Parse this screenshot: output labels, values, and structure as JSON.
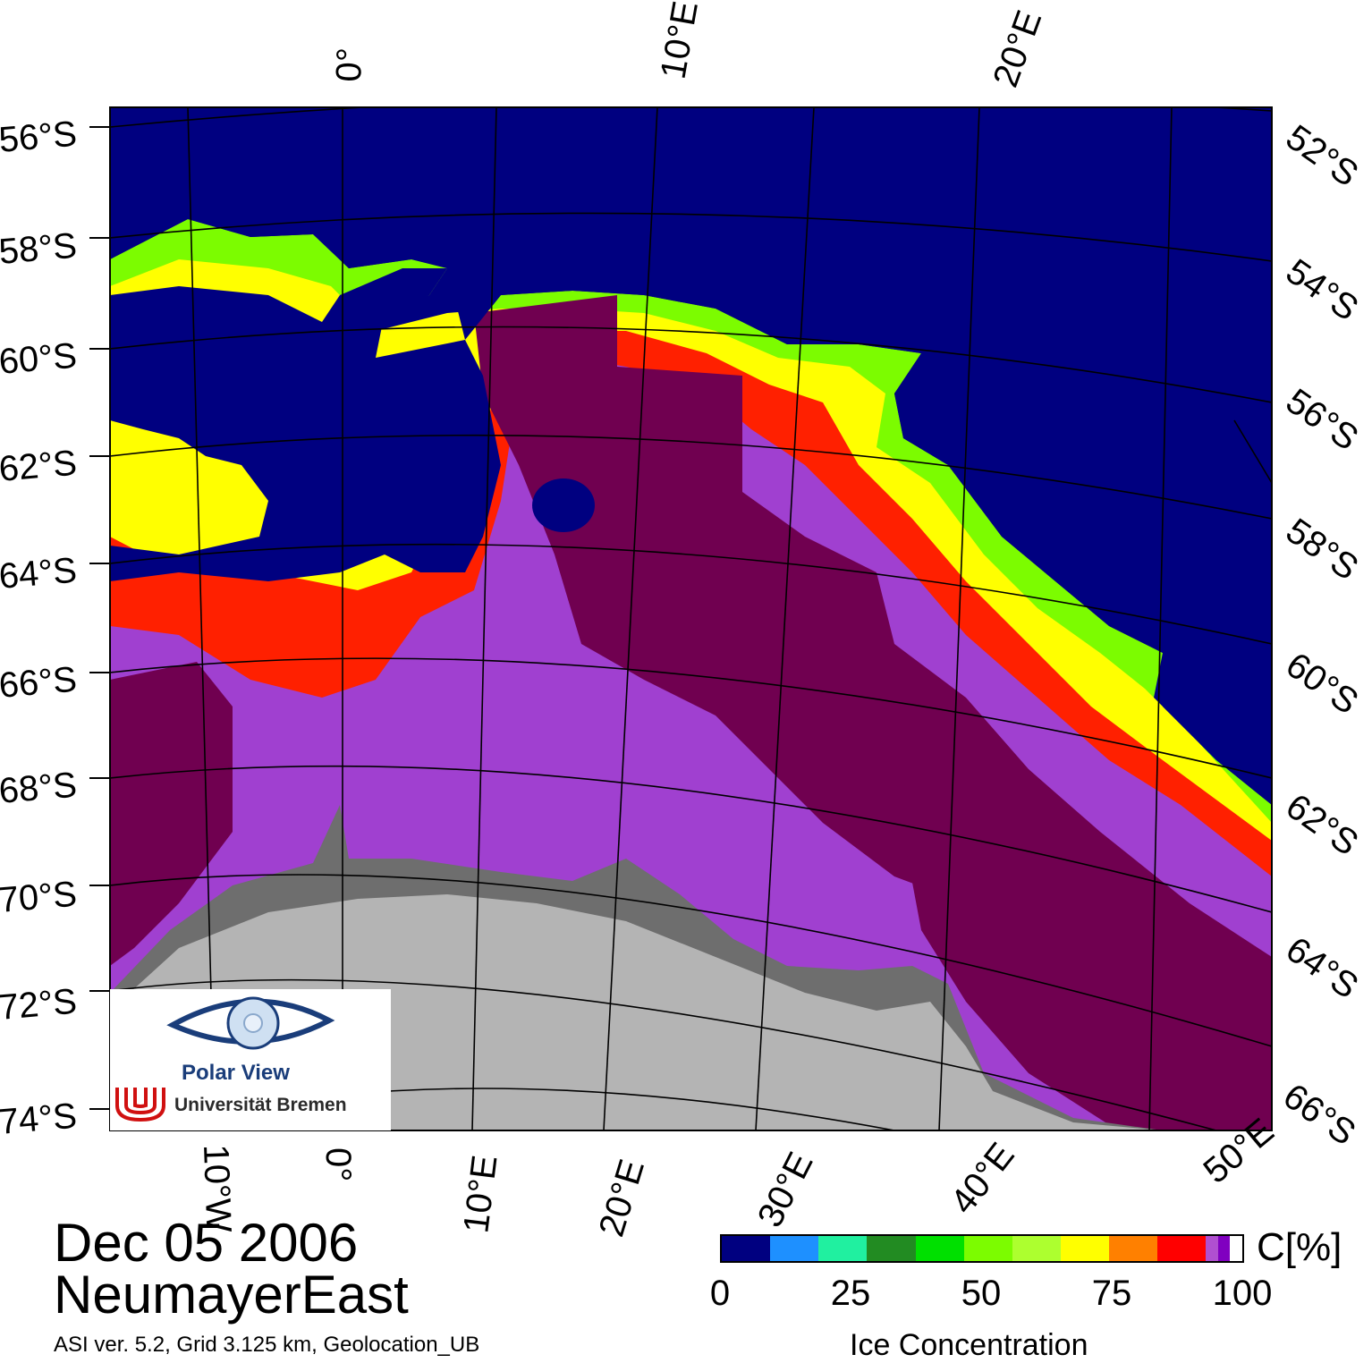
{
  "date": "Dec 05 2006",
  "region": "NeumayerEast",
  "credits": "ASI ver. 5.2,  Grid 3.125 km, Geolocation_UB",
  "lat_labels_left": [
    "56°S",
    "58°S",
    "60°S",
    "62°S",
    "64°S",
    "66°S",
    "68°S",
    "70°S",
    "72°S",
    "74°S"
  ],
  "lat_labels_right": [
    "52°S",
    "54°S",
    "56°S",
    "58°S",
    "60°S",
    "62°S",
    "64°S",
    "66°S"
  ],
  "lon_labels_top": [
    "0°",
    "10°E",
    "20°E"
  ],
  "lon_labels_bottom": [
    "10°W",
    "0°",
    "10°E",
    "20°E",
    "30°E",
    "40°E",
    "50°E"
  ],
  "colorbar": {
    "unit": "C[%]",
    "title": "Ice Concentration",
    "ticks": [
      "0",
      "25",
      "50",
      "75",
      "100"
    ],
    "colors": [
      "#000080",
      "#1e90ff",
      "#20f0a0",
      "#228b22",
      "#00e000",
      "#7cfc00",
      "#adff2f",
      "#ffff00",
      "#ff8000",
      "#ff0000",
      "#b050d0",
      "#8000c0",
      "#ffffff"
    ]
  },
  "logo": {
    "name": "Polar View",
    "org": "Universität Bremen"
  },
  "colors": {
    "ocean": "#000080",
    "land": "#b4b4b4",
    "shelf_ice": "#7a7a7a",
    "full_ice": "#700050",
    "high_ice": "#a040d0"
  }
}
